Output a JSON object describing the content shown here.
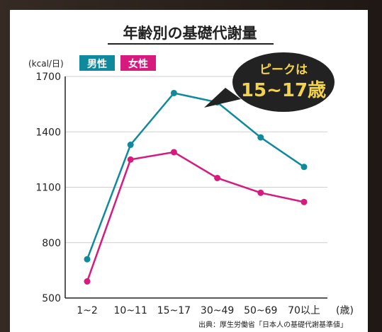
{
  "chart_data": {
    "type": "line",
    "title": "年齢別の基礎代謝量",
    "ylabel": "(kcal/日)",
    "xlabel": "",
    "x_unit_label": "(歳)",
    "categories": [
      "1~2",
      "10~11",
      "15~17",
      "30~49",
      "50~69",
      "70以上"
    ],
    "yticks": [
      500,
      800,
      1100,
      1400,
      1700
    ],
    "ylim": [
      500,
      1700
    ],
    "grid": true,
    "legend_position": "top-left",
    "series": [
      {
        "name": "男性",
        "color": "#0e8a9c",
        "values": [
          710,
          1330,
          1610,
          1560,
          1370,
          1210
        ]
      },
      {
        "name": "女性",
        "color": "#d61a7e",
        "values": [
          590,
          1250,
          1290,
          1150,
          1070,
          1020
        ]
      }
    ],
    "annotation": {
      "line1": "ピークは",
      "line2": "15~17歳"
    },
    "source": "出典：厚生労働省「日本人の基礎代謝基準値」"
  }
}
